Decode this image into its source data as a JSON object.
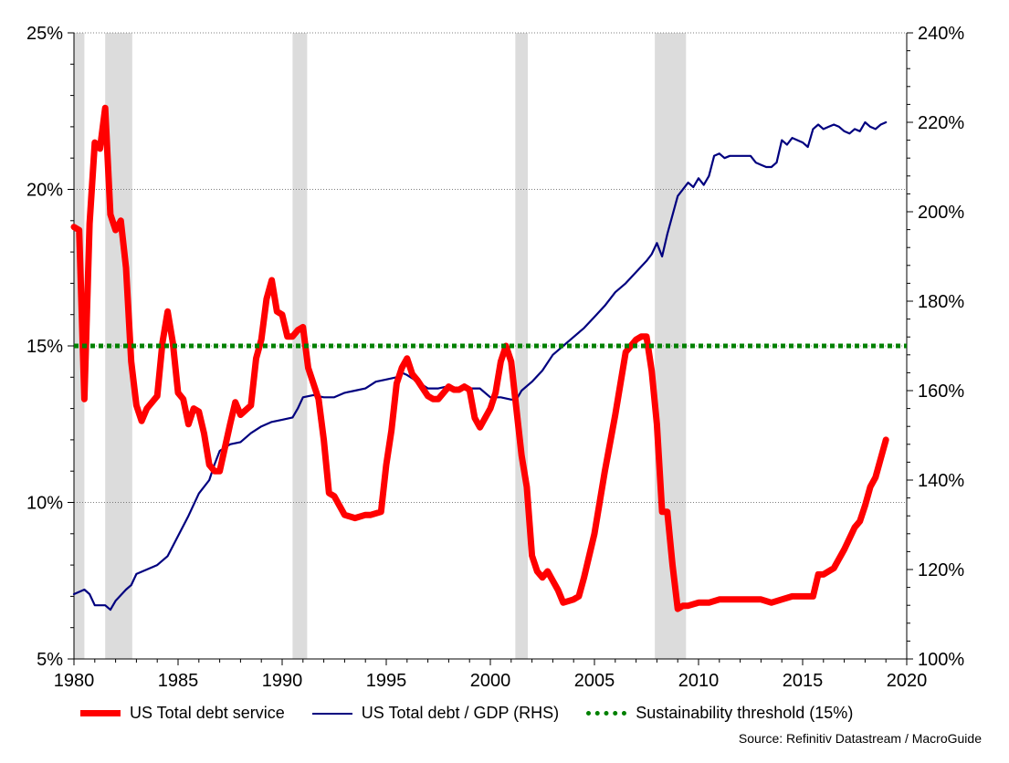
{
  "chart_data": {
    "type": "line",
    "title": "",
    "x_ticks": [
      "1980",
      "1985",
      "1990",
      "1995",
      "2000",
      "2005",
      "2010",
      "2015",
      "2020"
    ],
    "xlim": [
      1980,
      2020
    ],
    "left_axis": {
      "ylim": [
        5,
        25
      ],
      "ticks": [
        "5%",
        "10%",
        "15%",
        "20%",
        "25%"
      ]
    },
    "right_axis": {
      "ylim": [
        100,
        240
      ],
      "ticks": [
        "100%",
        "120%",
        "140%",
        "160%",
        "180%",
        "200%",
        "220%",
        "240%"
      ]
    },
    "grid": "horizontal dotted at left-axis ticks",
    "recessions": [
      [
        1980.0,
        1980.5
      ],
      [
        1981.5,
        1982.8
      ],
      [
        1990.5,
        1991.2
      ],
      [
        2001.2,
        2001.8
      ],
      [
        2007.9,
        2009.4
      ]
    ],
    "series": [
      {
        "name": "US Total debt service",
        "axis": "left",
        "color": "#ff0000",
        "x": [
          1980.0,
          1980.25,
          1980.5,
          1980.75,
          1981.0,
          1981.25,
          1981.5,
          1981.75,
          1982.0,
          1982.25,
          1982.5,
          1982.75,
          1983.0,
          1983.25,
          1983.5,
          1984.0,
          1984.25,
          1984.5,
          1984.75,
          1985.0,
          1985.25,
          1985.5,
          1985.75,
          1986.0,
          1986.25,
          1986.5,
          1986.75,
          1987.0,
          1987.5,
          1987.75,
          1988.0,
          1988.5,
          1988.75,
          1989.0,
          1989.25,
          1989.5,
          1989.75,
          1990.0,
          1990.25,
          1990.5,
          1990.75,
          1991.0,
          1991.25,
          1991.75,
          1992.0,
          1992.25,
          1992.5,
          1993.0,
          1993.5,
          1994.0,
          1994.25,
          1994.75,
          1995.0,
          1995.25,
          1995.5,
          1995.75,
          1996.0,
          1996.25,
          1996.5,
          1997.0,
          1997.25,
          1997.5,
          1998.0,
          1998.25,
          1998.5,
          1998.75,
          1999.0,
          1999.25,
          1999.5,
          2000.0,
          2000.25,
          2000.5,
          2000.75,
          2001.0,
          2001.25,
          2001.5,
          2001.75,
          2002.0,
          2002.25,
          2002.5,
          2002.75,
          2003.0,
          2003.25,
          2003.5,
          2004.0,
          2004.25,
          2004.5,
          2005.0,
          2005.5,
          2006.0,
          2006.5,
          2007.0,
          2007.25,
          2007.5,
          2007.75,
          2008.0,
          2008.25,
          2008.5,
          2008.75,
          2009.0,
          2009.25,
          2009.5,
          2010.0,
          2010.5,
          2011.0,
          2011.5,
          2012.0,
          2012.5,
          2013.0,
          2013.5,
          2014.0,
          2014.5,
          2015.0,
          2015.5,
          2015.75,
          2016.0,
          2016.5,
          2017.0,
          2017.5,
          2017.75,
          2018.0,
          2018.25,
          2018.5,
          2018.75,
          2019.0
        ],
        "values": [
          18.8,
          18.7,
          13.3,
          18.9,
          21.5,
          21.3,
          22.6,
          19.2,
          18.7,
          19.0,
          17.5,
          14.5,
          13.1,
          12.6,
          13.0,
          13.4,
          15.1,
          16.1,
          15.1,
          13.5,
          13.3,
          12.5,
          13.0,
          12.9,
          12.2,
          11.2,
          11.0,
          11.0,
          12.5,
          13.2,
          12.8,
          13.1,
          14.6,
          15.2,
          16.5,
          17.1,
          16.1,
          16.0,
          15.3,
          15.3,
          15.5,
          15.6,
          14.3,
          13.3,
          12.0,
          10.3,
          10.2,
          9.6,
          9.5,
          9.6,
          9.6,
          9.7,
          11.2,
          12.3,
          13.8,
          14.3,
          14.6,
          14.1,
          13.9,
          13.4,
          13.3,
          13.3,
          13.7,
          13.6,
          13.6,
          13.7,
          13.6,
          12.7,
          12.4,
          13.0,
          13.5,
          14.5,
          15.0,
          14.5,
          13.0,
          11.5,
          10.5,
          8.3,
          7.8,
          7.6,
          7.8,
          7.5,
          7.2,
          6.8,
          6.9,
          7.0,
          7.6,
          9.0,
          11.0,
          12.8,
          14.8,
          15.2,
          15.3,
          15.3,
          14.2,
          12.5,
          9.7,
          9.7,
          8.0,
          6.6,
          6.7,
          6.7,
          6.8,
          6.8,
          6.9,
          6.9,
          6.9,
          6.9,
          6.9,
          6.8,
          6.9,
          7.0,
          7.0,
          7.0,
          7.7,
          7.7,
          7.9,
          8.5,
          9.2,
          9.4,
          9.9,
          10.5,
          10.8,
          11.4,
          12.0
        ]
      },
      {
        "name": "US Total debt / GDP (RHS)",
        "axis": "right",
        "color": "#00007f",
        "x": [
          1980.0,
          1980.5,
          1980.75,
          1981.0,
          1981.5,
          1981.75,
          1982.0,
          1982.5,
          1982.75,
          1983.0,
          1983.5,
          1984.0,
          1984.5,
          1985.0,
          1985.5,
          1986.0,
          1986.5,
          1986.75,
          1987.0,
          1987.5,
          1988.0,
          1988.5,
          1989.0,
          1989.5,
          1990.0,
          1990.5,
          1990.75,
          1991.0,
          1991.5,
          1992.0,
          1992.5,
          1993.0,
          1993.5,
          1994.0,
          1994.5,
          1995.0,
          1995.5,
          1995.75,
          1996.0,
          1996.5,
          1997.0,
          1997.5,
          1998.0,
          1998.5,
          1999.0,
          1999.5,
          2000.0,
          2000.5,
          2001.0,
          2001.25,
          2001.5,
          2002.0,
          2002.5,
          2003.0,
          2003.5,
          2004.0,
          2004.5,
          2005.0,
          2005.5,
          2006.0,
          2006.5,
          2007.0,
          2007.5,
          2007.75,
          2008.0,
          2008.25,
          2008.5,
          2009.0,
          2009.5,
          2009.75,
          2010.0,
          2010.25,
          2010.5,
          2010.75,
          2011.0,
          2011.25,
          2011.5,
          2012.0,
          2012.5,
          2012.75,
          2013.0,
          2013.25,
          2013.5,
          2013.75,
          2014.0,
          2014.25,
          2014.5,
          2015.0,
          2015.25,
          2015.5,
          2015.75,
          2016.0,
          2016.25,
          2016.5,
          2016.75,
          2017.0,
          2017.25,
          2017.5,
          2017.75,
          2018.0,
          2018.25,
          2018.5,
          2018.75,
          2019.0
        ],
        "values": [
          114.5,
          115.5,
          114.5,
          112.0,
          112.0,
          111.0,
          113.0,
          115.5,
          116.5,
          119.0,
          120.0,
          121.0,
          123.0,
          127.5,
          132.0,
          137.0,
          140.0,
          143.5,
          146.5,
          148.0,
          148.5,
          150.5,
          152.0,
          153.0,
          153.5,
          154.0,
          156.0,
          158.5,
          159.0,
          158.5,
          158.5,
          159.5,
          160.0,
          160.5,
          162.0,
          162.5,
          163.0,
          164.0,
          163.5,
          162.0,
          160.5,
          160.5,
          161.0,
          160.5,
          160.5,
          160.5,
          158.5,
          158.5,
          158.0,
          158.0,
          160.0,
          162.0,
          164.5,
          168.0,
          170.0,
          172.0,
          174.0,
          176.5,
          179.0,
          182.0,
          184.0,
          186.5,
          189.0,
          190.5,
          193.0,
          190.0,
          195.0,
          203.5,
          206.5,
          205.5,
          207.5,
          206.0,
          208.0,
          212.5,
          213.0,
          212.0,
          212.5,
          212.5,
          212.5,
          211.0,
          210.5,
          210.0,
          210.0,
          211.0,
          216.0,
          215.0,
          216.5,
          215.5,
          214.5,
          218.5,
          219.5,
          218.5,
          219.0,
          219.5,
          219.0,
          218.0,
          217.5,
          218.5,
          218.0,
          220.0,
          219.0,
          218.5,
          219.5,
          220.0
        ]
      },
      {
        "name": "Sustainability threshold (15%)",
        "axis": "left",
        "color": "#008000",
        "style": "dotted",
        "x": [
          1980,
          2020
        ],
        "values": [
          15,
          15
        ]
      }
    ]
  },
  "legend": {
    "debt_service": "US Total debt service",
    "debt_gdp": "US Total debt / GDP (RHS)",
    "threshold": "Sustainability threshold (15%)"
  },
  "source": "Source: Refinitiv Datastream / MacroGuide"
}
